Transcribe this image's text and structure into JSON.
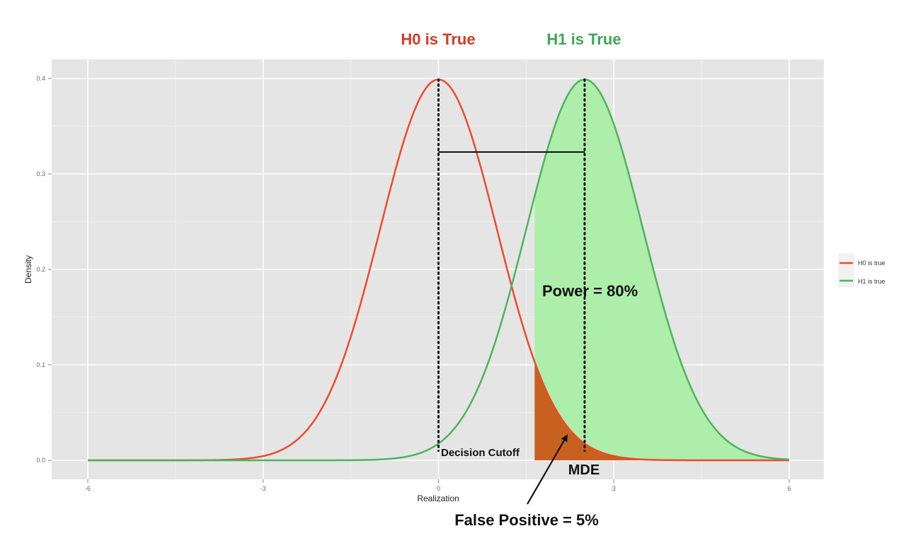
{
  "chart_data": {
    "type": "line",
    "title": "",
    "xlabel": "Realization",
    "ylabel": "Density",
    "xlim": [
      -6,
      6
    ],
    "ylim": [
      0,
      0.4
    ],
    "x_ticks": [
      -6,
      -3,
      0,
      3,
      6
    ],
    "x_tick_labels": [
      "-6",
      "-3",
      "0",
      "3",
      "6"
    ],
    "y_ticks": [
      0.0,
      0.1,
      0.2,
      0.3,
      0.4
    ],
    "y_tick_labels": [
      "0.0",
      "0.1",
      "0.2",
      "0.3",
      "0.4"
    ],
    "grid": true,
    "legend_position": "right",
    "series": [
      {
        "name": "H0 is true",
        "distribution": "normal",
        "mean": 0,
        "sd": 1,
        "color": "#ee4a2c",
        "x": [
          -6,
          -5,
          -4,
          -3,
          -2.5,
          -2,
          -1.5,
          -1,
          -0.5,
          0,
          0.5,
          1,
          1.5,
          2,
          2.5,
          3,
          4,
          5,
          6
        ],
        "y": [
          0.0,
          0.0,
          0.0001,
          0.0044,
          0.0175,
          0.054,
          0.1295,
          0.242,
          0.3521,
          0.3989,
          0.3521,
          0.242,
          0.1295,
          0.054,
          0.0175,
          0.0044,
          0.0001,
          0.0,
          0.0
        ]
      },
      {
        "name": "H1 is true",
        "distribution": "normal",
        "mean": 2.5,
        "sd": 1,
        "color": "#4db35e",
        "x": [
          -6,
          -4,
          -2,
          -1,
          0,
          0.5,
          1,
          1.5,
          2,
          2.5,
          3,
          3.5,
          4,
          4.5,
          5,
          6
        ],
        "y": [
          0.0,
          0.0,
          0.0,
          0.0009,
          0.0175,
          0.054,
          0.1295,
          0.242,
          0.3521,
          0.3989,
          0.3521,
          0.242,
          0.1295,
          0.054,
          0.0175,
          0.0009
        ]
      }
    ],
    "decision_cutoff": 1.645,
    "power_fill_color": "#adeeaa",
    "false_positive_fill_color": "#c8601f",
    "annotations": {
      "h0_header": "H0 is True",
      "h1_header": "H1 is True",
      "h0_header_color": "#d63a26",
      "h1_header_color": "#3fa654",
      "power": "Power = 80%",
      "decision_cutoff": "Decision Cutoff",
      "mde": "MDE",
      "false_positive": "False Positive = 5%"
    },
    "mde_bar_y": 0.323
  }
}
